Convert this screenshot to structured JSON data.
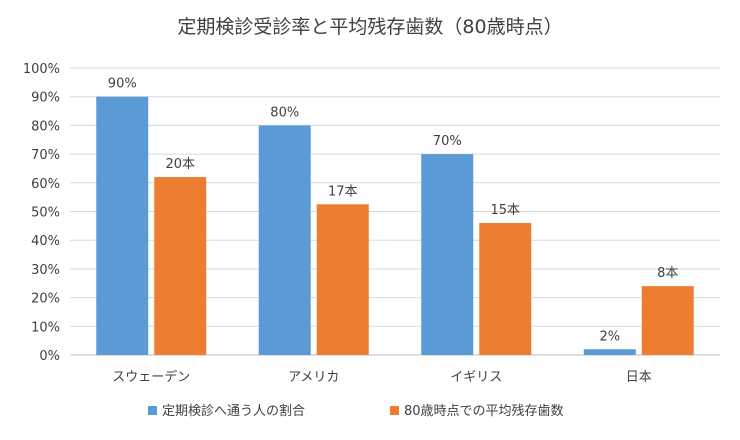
{
  "chart_data": {
    "type": "bar",
    "title": "定期検診受診率と平均残存歯数（80歳時点）",
    "categories": [
      "スウェーデン",
      "アメリカ",
      "イギリス",
      "日本"
    ],
    "ylim": [
      0,
      100
    ],
    "yticks": [
      "0%",
      "10%",
      "20%",
      "30%",
      "40%",
      "50%",
      "60%",
      "70%",
      "80%",
      "90%",
      "100%"
    ],
    "grid": true,
    "legend_position": "bottom",
    "series": [
      {
        "name": "定期検診へ通う人の割合",
        "color": "#5B9BD5",
        "values": [
          90,
          80,
          70,
          2
        ],
        "labels": [
          "90%",
          "80%",
          "70%",
          "2%"
        ]
      },
      {
        "name": "80歳時点での平均残存歯数",
        "color": "#ED7D31",
        "values": [
          62,
          52.5,
          46,
          24
        ],
        "labels": [
          "20本",
          "17本",
          "15本",
          "8本"
        ]
      }
    ]
  }
}
